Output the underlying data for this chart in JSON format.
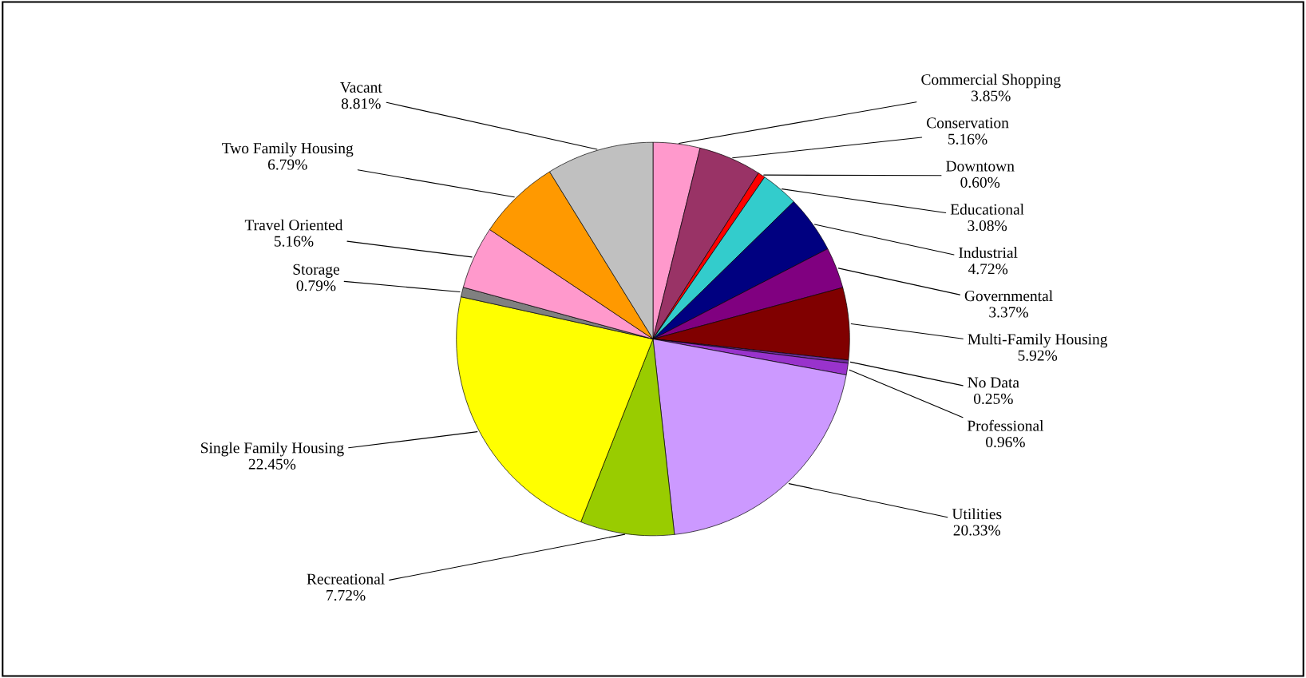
{
  "chart_data": {
    "type": "pie",
    "categories": [
      "Commercial Shopping",
      "Conservation",
      "Downtown",
      "Educational",
      "Industrial",
      "Governmental",
      "Multi-Family Housing",
      "No Data",
      "Professional",
      "Utilities",
      "Recreational",
      "Single Family Housing",
      "Storage",
      "Travel Oriented",
      "Two Family Housing",
      "Vacant"
    ],
    "values": [
      3.85,
      5.16,
      0.6,
      3.08,
      4.72,
      3.37,
      5.92,
      0.25,
      0.96,
      20.33,
      7.72,
      22.45,
      0.79,
      5.16,
      6.79,
      8.81
    ],
    "value_labels": [
      "3.85%",
      "5.16%",
      "0.60%",
      "3.08%",
      "4.72%",
      "3.37%",
      "5.92%",
      "0.25%",
      "0.96%",
      "20.33%",
      "7.72%",
      "22.45%",
      "0.79%",
      "5.16%",
      "6.79%",
      "8.81%"
    ],
    "colors": [
      "#ff99cc",
      "#993366",
      "#ff0000",
      "#33cccc",
      "#000080",
      "#800080",
      "#800000",
      "#7030a0",
      "#9933cc",
      "#cc99ff",
      "#99cc00",
      "#ffff00",
      "#808080",
      "#ff99cc",
      "#ff9900",
      "#c0c0c0"
    ],
    "legend": false
  }
}
